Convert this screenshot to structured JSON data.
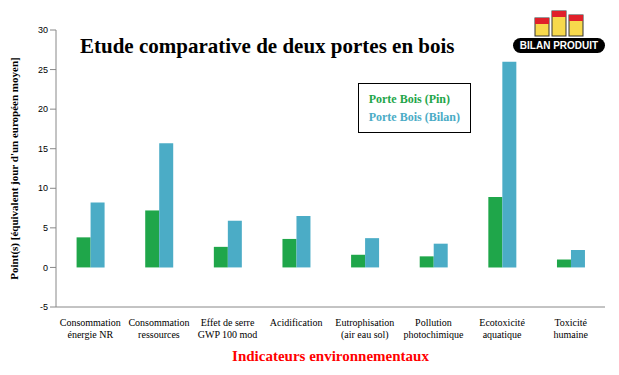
{
  "chart_data": {
    "type": "bar",
    "title": "Etude comparative de deux portes en bois",
    "x_label": "Indicateurs environnementaux",
    "y_label": "Point(s) [équivalent jour d'un européen moyen]",
    "annotations": [
      "BILAN PRODUIT"
    ],
    "categories": [
      "Consommation énergie NR",
      "Consommation ressources",
      "Effet de serre GWP 100 mod",
      "Acidification",
      "Eutrophisation (air eau sol)",
      "Pollution photochimique",
      "Ecotoxicité aquatique",
      "Toxicité humaine"
    ],
    "series": [
      {
        "name": "Porte Bois (Pin)",
        "color": "#1fa64a",
        "values": [
          3.8,
          7.2,
          2.6,
          3.6,
          1.6,
          1.4,
          8.9,
          1.0
        ]
      },
      {
        "name": "Porte Bois (Bilan)",
        "color": "#4bacc6",
        "values": [
          8.2,
          15.7,
          5.9,
          6.5,
          3.7,
          3.0,
          26.0,
          2.2
        ]
      }
    ],
    "ylim": [
      -5,
      30
    ],
    "yticks": [
      -5,
      0,
      5,
      10,
      15,
      20,
      25,
      30
    ],
    "grid": false,
    "legend": "top-right"
  }
}
